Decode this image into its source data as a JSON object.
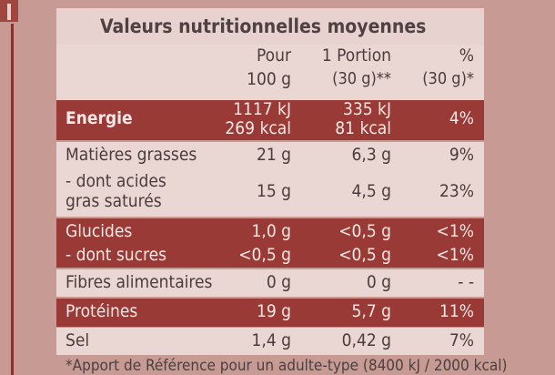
{
  "title": "Valeurs nutritionnelles moyennes",
  "headers": {
    "col1_line1": "Pour",
    "col1_line2": "100 g",
    "col2_line1": "1 Portion",
    "col2_line2": "(30 g)**",
    "col3_line1": "%",
    "col3_line2": "(30 g)*"
  },
  "rows": [
    {
      "label_line1": "Energie",
      "label_line2": "",
      "c1_line1": "1117 kJ",
      "c1_line2": "269 kcal",
      "c2_line1": "335 kJ",
      "c2_line2": "81 kcal",
      "c3": "4%"
    },
    {
      "label_line1": "Matières grasses",
      "label_line2": "",
      "c1_line1": "21 g",
      "c1_line2": "",
      "c2_line1": "6,3 g",
      "c2_line2": "",
      "c3": "9%"
    },
    {
      "label_line1": "- dont acides",
      "label_line2": "gras saturés",
      "c1_line1": "15 g",
      "c1_line2": "",
      "c2_line1": "4,5 g",
      "c2_line2": "",
      "c3": "23%"
    },
    {
      "label_line1": "Glucides",
      "label_line2": "",
      "c1_line1": "1,0 g",
      "c1_line2": "",
      "c2_line1": "<0,5 g",
      "c2_line2": "",
      "c3": "<1%"
    },
    {
      "label_line1": "- dont sucres",
      "label_line2": "",
      "c1_line1": "<0,5 g",
      "c1_line2": "",
      "c2_line1": "<0,5 g",
      "c2_line2": "",
      "c3": "<1%"
    },
    {
      "label_line1": "Fibres alimentaires",
      "label_line2": "",
      "c1_line1": "0 g",
      "c1_line2": "",
      "c2_line1": "0 g",
      "c2_line2": "",
      "c3": "-   -"
    },
    {
      "label_line1": "Protéines",
      "label_line2": "",
      "c1_line1": "19 g",
      "c1_line2": "",
      "c2_line1": "5,7 g",
      "c2_line2": "",
      "c3": "11%"
    },
    {
      "label_line1": "Sel",
      "label_line2": "",
      "c1_line1": "1,4 g",
      "c1_line2": "",
      "c2_line1": "0,42 g",
      "c2_line2": "",
      "c3": "7%"
    }
  ],
  "footnote": "*Apport de Référence pour un adulte-type (8400 kJ / 2000 kcal)"
}
